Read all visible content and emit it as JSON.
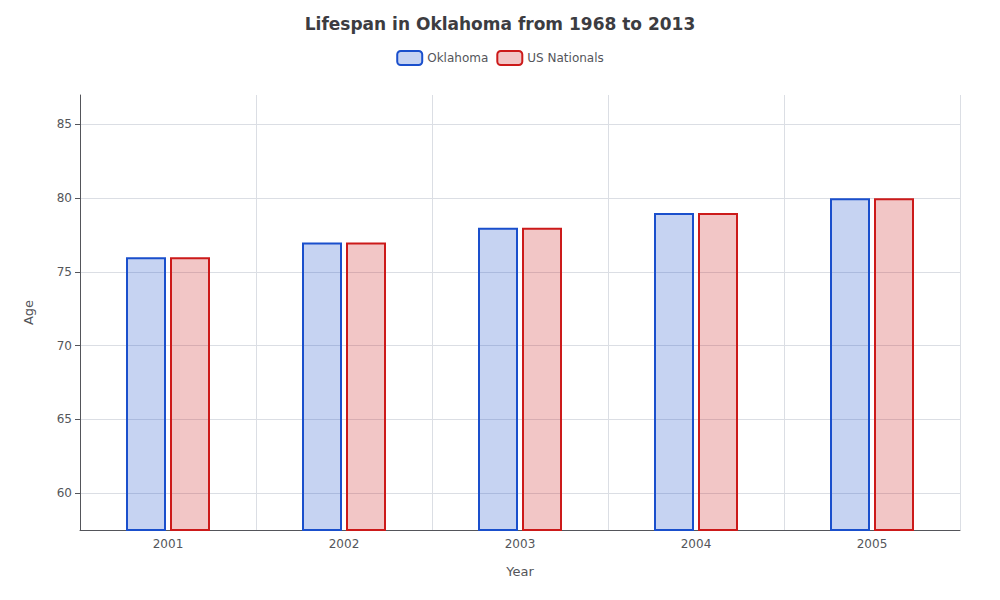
{
  "chart_data": {
    "type": "bar",
    "title": "Lifespan in Oklahoma from 1968 to 2013",
    "xlabel": "Year",
    "ylabel": "Age",
    "categories": [
      "2001",
      "2002",
      "2003",
      "2004",
      "2005"
    ],
    "series": [
      {
        "name": "Oklahoma",
        "color": "#1a4fcc",
        "values": [
          76,
          77,
          78,
          79,
          80
        ]
      },
      {
        "name": "US Nationals",
        "color": "#cc1a1a",
        "values": [
          76,
          77,
          78,
          79,
          80
        ]
      }
    ],
    "ylim": [
      57.5,
      87
    ],
    "yticks": [
      60,
      65,
      70,
      75,
      80,
      85
    ],
    "grid": true,
    "legend": "top"
  }
}
